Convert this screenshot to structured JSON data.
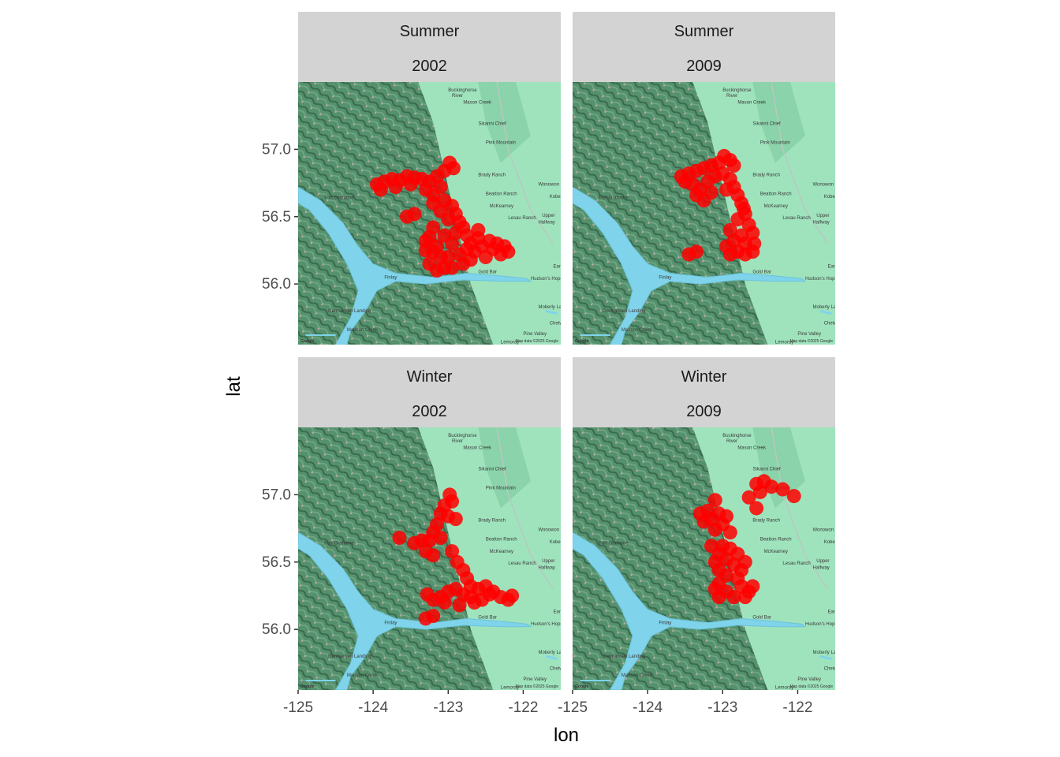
{
  "chart_data": {
    "type": "scatter",
    "xlabel": "lon",
    "ylabel": "lat",
    "xlim": [
      -125.0,
      -121.5
    ],
    "ylim": [
      55.55,
      57.5
    ],
    "xticks": [
      -125,
      -124,
      -123,
      -122
    ],
    "xtick_labels": [
      "-125",
      "-124",
      "-123",
      "-122"
    ],
    "yticks": [
      56.0,
      56.5,
      57.0
    ],
    "ytick_labels": [
      "56.0",
      "56.5",
      "57.0"
    ],
    "point_color": "#ff0000",
    "basemap": {
      "credit_left": "Google",
      "credit_right": "Map data ©2025 Google",
      "places": [
        {
          "name": "Buckinghorse",
          "lon": -123.0,
          "lat": 57.43
        },
        {
          "name": "River",
          "lon": -122.95,
          "lat": 57.39
        },
        {
          "name": "Mason Creek",
          "lon": -122.8,
          "lat": 57.34
        },
        {
          "name": "Sikanni Chief",
          "lon": -122.6,
          "lat": 57.18
        },
        {
          "name": "Pink Mountain",
          "lon": -122.5,
          "lat": 57.04
        },
        {
          "name": "Brady Ranch",
          "lon": -122.6,
          "lat": 56.8
        },
        {
          "name": "Beatton Ranch",
          "lon": -122.5,
          "lat": 56.66
        },
        {
          "name": "McKearney",
          "lon": -122.45,
          "lat": 56.57
        },
        {
          "name": "Lesau Ranch",
          "lon": -122.2,
          "lat": 56.48
        },
        {
          "name": "Upper",
          "lon": -121.75,
          "lat": 56.5
        },
        {
          "name": "Halfway",
          "lon": -121.8,
          "lat": 56.45
        },
        {
          "name": "Wonowon",
          "lon": -121.8,
          "lat": 56.73
        },
        {
          "name": "Kobes",
          "lon": -121.65,
          "lat": 56.64
        },
        {
          "name": "Earl Cr",
          "lon": -121.6,
          "lat": 56.12
        },
        {
          "name": "Gold Bar",
          "lon": -122.6,
          "lat": 56.08
        },
        {
          "name": "Hudson's Hope",
          "lon": -121.9,
          "lat": 56.03
        },
        {
          "name": "Finlay",
          "lon": -123.85,
          "lat": 56.04
        },
        {
          "name": "Germansen Landing",
          "lon": -124.6,
          "lat": 55.79
        },
        {
          "name": "Manson Creek",
          "lon": -124.35,
          "lat": 55.65
        },
        {
          "name": "Fort Grahame",
          "lon": -124.65,
          "lat": 56.63
        },
        {
          "name": "Moberly Lake",
          "lon": -121.8,
          "lat": 55.82
        },
        {
          "name": "Chetwynd",
          "lon": -121.65,
          "lat": 55.7
        },
        {
          "name": "Lemoray",
          "lon": -122.3,
          "lat": 55.56
        },
        {
          "name": "Pine Valley",
          "lon": -122.0,
          "lat": 55.62
        }
      ]
    },
    "panels": [
      {
        "season": "Summer",
        "year": "2002",
        "points": [
          [
            -123.95,
            56.74
          ],
          [
            -123.85,
            56.76
          ],
          [
            -123.75,
            56.78
          ],
          [
            -123.65,
            56.77
          ],
          [
            -123.55,
            56.8
          ],
          [
            -123.45,
            56.79
          ],
          [
            -123.35,
            56.78
          ],
          [
            -123.25,
            56.76
          ],
          [
            -123.15,
            56.8
          ],
          [
            -123.05,
            56.84
          ],
          [
            -122.98,
            56.9
          ],
          [
            -122.93,
            56.86
          ],
          [
            -123.9,
            56.7
          ],
          [
            -123.7,
            56.72
          ],
          [
            -123.5,
            56.74
          ],
          [
            -123.3,
            56.7
          ],
          [
            -123.2,
            56.66
          ],
          [
            -123.1,
            56.72
          ],
          [
            -123.05,
            56.62
          ],
          [
            -122.95,
            56.58
          ],
          [
            -122.9,
            56.52
          ],
          [
            -122.85,
            56.46
          ],
          [
            -123.0,
            56.48
          ],
          [
            -123.1,
            56.54
          ],
          [
            -123.2,
            56.6
          ],
          [
            -123.45,
            56.52
          ],
          [
            -123.55,
            56.5
          ],
          [
            -123.2,
            56.42
          ],
          [
            -123.25,
            56.35
          ],
          [
            -123.3,
            56.25
          ],
          [
            -123.25,
            56.15
          ],
          [
            -123.15,
            56.1
          ],
          [
            -123.05,
            56.12
          ],
          [
            -123.0,
            56.2
          ],
          [
            -122.95,
            56.3
          ],
          [
            -123.05,
            56.36
          ],
          [
            -123.15,
            56.28
          ],
          [
            -122.9,
            56.38
          ],
          [
            -122.8,
            56.42
          ],
          [
            -122.75,
            56.36
          ],
          [
            -122.7,
            56.3
          ],
          [
            -122.65,
            56.24
          ],
          [
            -122.55,
            56.28
          ],
          [
            -122.45,
            56.32
          ],
          [
            -122.4,
            56.26
          ],
          [
            -122.3,
            56.22
          ],
          [
            -122.2,
            56.24
          ],
          [
            -122.35,
            56.3
          ],
          [
            -122.6,
            56.34
          ],
          [
            -122.85,
            56.22
          ],
          [
            -122.8,
            56.15
          ],
          [
            -122.7,
            56.18
          ],
          [
            -122.95,
            56.12
          ],
          [
            -123.3,
            56.32
          ],
          [
            -122.5,
            56.2
          ],
          [
            -122.25,
            56.28
          ],
          [
            -122.75,
            56.26
          ],
          [
            -123.1,
            56.2
          ],
          [
            -123.2,
            56.24
          ],
          [
            -122.6,
            56.4
          ]
        ]
      },
      {
        "season": "Summer",
        "year": "2009",
        "points": [
          [
            -123.55,
            56.8
          ],
          [
            -123.45,
            56.82
          ],
          [
            -123.35,
            56.84
          ],
          [
            -123.25,
            56.86
          ],
          [
            -123.15,
            56.88
          ],
          [
            -123.05,
            56.9
          ],
          [
            -122.98,
            56.95
          ],
          [
            -122.9,
            56.92
          ],
          [
            -122.85,
            56.88
          ],
          [
            -123.5,
            56.76
          ],
          [
            -123.4,
            56.74
          ],
          [
            -123.3,
            56.7
          ],
          [
            -123.2,
            56.76
          ],
          [
            -123.1,
            56.8
          ],
          [
            -123.0,
            56.82
          ],
          [
            -122.9,
            56.78
          ],
          [
            -122.85,
            56.72
          ],
          [
            -122.8,
            56.66
          ],
          [
            -122.75,
            56.6
          ],
          [
            -123.25,
            56.62
          ],
          [
            -123.15,
            56.68
          ],
          [
            -123.35,
            56.66
          ],
          [
            -122.95,
            56.7
          ],
          [
            -122.7,
            56.52
          ],
          [
            -122.65,
            56.44
          ],
          [
            -122.6,
            56.38
          ],
          [
            -122.58,
            56.3
          ],
          [
            -122.6,
            56.24
          ],
          [
            -122.7,
            56.22
          ],
          [
            -122.8,
            56.24
          ],
          [
            -122.9,
            56.22
          ],
          [
            -122.95,
            56.28
          ],
          [
            -122.85,
            56.32
          ],
          [
            -122.75,
            56.36
          ],
          [
            -122.7,
            56.3
          ],
          [
            -122.9,
            56.4
          ],
          [
            -122.8,
            56.48
          ],
          [
            -122.72,
            56.56
          ],
          [
            -123.45,
            56.22
          ],
          [
            -123.35,
            56.24
          ]
        ]
      },
      {
        "season": "Winter",
        "year": "2002",
        "points": [
          [
            -122.98,
            57.0
          ],
          [
            -122.95,
            56.95
          ],
          [
            -123.05,
            56.92
          ],
          [
            -123.1,
            56.86
          ],
          [
            -123.0,
            56.84
          ],
          [
            -122.9,
            56.82
          ],
          [
            -123.15,
            56.78
          ],
          [
            -123.2,
            56.72
          ],
          [
            -123.1,
            56.68
          ],
          [
            -123.25,
            56.66
          ],
          [
            -123.35,
            56.66
          ],
          [
            -123.45,
            56.64
          ],
          [
            -123.65,
            56.68
          ],
          [
            -123.3,
            56.58
          ],
          [
            -123.2,
            56.55
          ],
          [
            -122.95,
            56.58
          ],
          [
            -122.88,
            56.5
          ],
          [
            -122.8,
            56.44
          ],
          [
            -122.75,
            56.38
          ],
          [
            -122.7,
            56.32
          ],
          [
            -122.6,
            56.3
          ],
          [
            -122.5,
            56.32
          ],
          [
            -122.4,
            56.28
          ],
          [
            -122.3,
            56.24
          ],
          [
            -122.2,
            56.22
          ],
          [
            -122.15,
            56.25
          ],
          [
            -122.55,
            56.22
          ],
          [
            -122.65,
            56.2
          ],
          [
            -122.8,
            56.26
          ],
          [
            -122.9,
            56.3
          ],
          [
            -123.0,
            56.28
          ],
          [
            -123.1,
            56.24
          ],
          [
            -123.2,
            56.22
          ],
          [
            -123.28,
            56.26
          ],
          [
            -123.3,
            56.08
          ],
          [
            -123.2,
            56.1
          ],
          [
            -122.85,
            56.18
          ],
          [
            -123.05,
            56.2
          ],
          [
            -122.7,
            56.24
          ],
          [
            -122.45,
            56.26
          ]
        ]
      },
      {
        "season": "Winter",
        "year": "2009",
        "points": [
          [
            -122.55,
            57.08
          ],
          [
            -122.45,
            57.1
          ],
          [
            -122.35,
            57.06
          ],
          [
            -122.2,
            57.04
          ],
          [
            -122.05,
            56.99
          ],
          [
            -122.5,
            57.02
          ],
          [
            -122.65,
            56.98
          ],
          [
            -122.55,
            56.9
          ],
          [
            -123.1,
            56.96
          ],
          [
            -123.2,
            56.88
          ],
          [
            -123.3,
            56.86
          ],
          [
            -123.25,
            56.8
          ],
          [
            -123.15,
            56.82
          ],
          [
            -123.05,
            56.86
          ],
          [
            -122.95,
            56.84
          ],
          [
            -123.0,
            56.78
          ],
          [
            -123.1,
            56.74
          ],
          [
            -122.9,
            56.72
          ],
          [
            -123.15,
            56.62
          ],
          [
            -123.0,
            56.62
          ],
          [
            -122.9,
            56.6
          ],
          [
            -122.8,
            56.56
          ],
          [
            -123.05,
            56.56
          ],
          [
            -122.95,
            56.52
          ],
          [
            -122.85,
            56.48
          ],
          [
            -123.1,
            56.5
          ],
          [
            -123.05,
            56.44
          ],
          [
            -122.95,
            56.4
          ],
          [
            -122.8,
            56.38
          ],
          [
            -122.75,
            56.32
          ],
          [
            -122.65,
            56.28
          ],
          [
            -122.6,
            56.32
          ],
          [
            -122.7,
            56.24
          ],
          [
            -122.85,
            56.24
          ],
          [
            -122.95,
            56.28
          ],
          [
            -123.05,
            56.34
          ],
          [
            -123.1,
            56.3
          ],
          [
            -123.05,
            56.24
          ],
          [
            -122.75,
            56.44
          ],
          [
            -122.7,
            56.5
          ]
        ]
      }
    ]
  }
}
